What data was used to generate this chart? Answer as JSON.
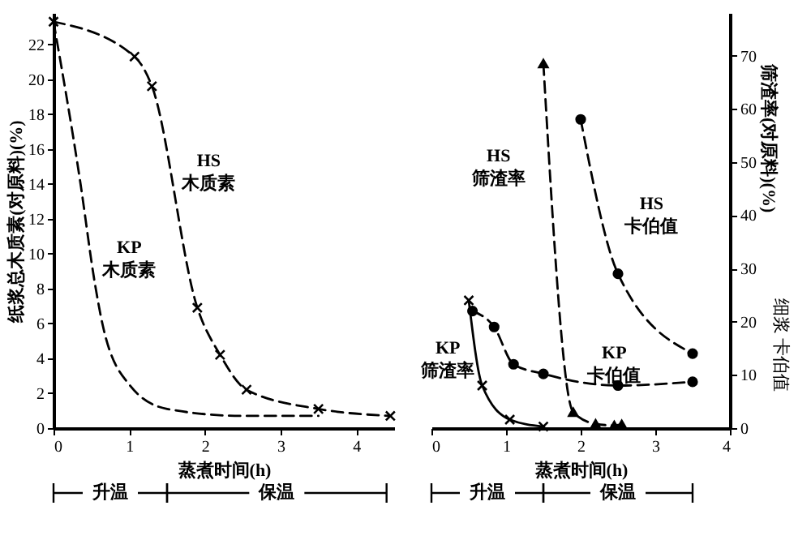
{
  "chart_data": [
    {
      "type": "line",
      "xlabel": "蒸煮时间(h)",
      "ylabel": "纸浆总木质素(对原料)(%)",
      "xlim": [
        0,
        4.5
      ],
      "ylim": [
        0,
        23.8
      ],
      "xticks": [
        0,
        1,
        2,
        3,
        4
      ],
      "yticks": [
        0,
        2,
        4,
        6,
        8,
        10,
        12,
        14,
        16,
        18,
        20,
        22
      ],
      "legend": false,
      "grid": false,
      "series": [
        {
          "name": "HS 木质素",
          "color": "#000000",
          "marker": "cross",
          "line_style": "dashed",
          "x": [
            0,
            1.07,
            1.3,
            1.9,
            2.2,
            2.55,
            3.5,
            4.45
          ],
          "values": [
            23.3,
            21.3,
            19.6,
            6.9,
            4.2,
            2.2,
            1.1,
            0.7
          ]
        },
        {
          "name": "KP 木质素",
          "color": "#000000",
          "marker": "none",
          "line_style": "dashed",
          "x": [
            0,
            0.35,
            0.55,
            0.65,
            1.0,
            1.5,
            2.5,
            3.5
          ],
          "values": [
            23.3,
            14.2,
            8.2,
            5.9,
            2.5,
            1.1,
            0.7,
            0.7
          ]
        }
      ],
      "annotations": [
        "升温",
        "保温"
      ]
    },
    {
      "type": "line",
      "xlabel": "蒸煮时间(h)",
      "ylabel": "筛渣率(对原料)(%)",
      "y2label": "细浆 卡伯值",
      "xlim": [
        0,
        4
      ],
      "ylim": [
        0,
        78
      ],
      "xticks": [
        0,
        1,
        2,
        3,
        4
      ],
      "yticks": [
        0,
        10,
        20,
        30,
        40,
        50,
        60,
        70
      ],
      "legend": false,
      "grid": false,
      "series": [
        {
          "name": "HS 筛渣率",
          "color": "#000000",
          "marker": "triangle",
          "line_style": "dashed",
          "x": [
            1.5,
            1.9,
            2.2,
            2.45,
            2.55
          ],
          "values": [
            68.5,
            3,
            0.8,
            0.5,
            0.7
          ]
        },
        {
          "name": "HS 卡伯值",
          "color": "#000000",
          "marker": "circle",
          "line_style": "dashed",
          "x": [
            2.0,
            2.5,
            3.5
          ],
          "values": [
            58,
            29,
            14
          ]
        },
        {
          "name": "KP 筛渣率",
          "color": "#000000",
          "marker": "cross",
          "line_style": "solid",
          "x": [
            0.5,
            0.68,
            1.05,
            1.5
          ],
          "values": [
            24,
            8,
            1.6,
            0.3
          ]
        },
        {
          "name": "KP 卡伯值",
          "color": "#000000",
          "marker": "circle",
          "line_style": "dashed",
          "x": [
            0.55,
            0.84,
            1.1,
            1.5,
            2.5,
            3.5
          ],
          "values": [
            22,
            19,
            12,
            10.2,
            8,
            8.7
          ]
        }
      ],
      "annotations": [
        "升温",
        "保温"
      ]
    }
  ]
}
